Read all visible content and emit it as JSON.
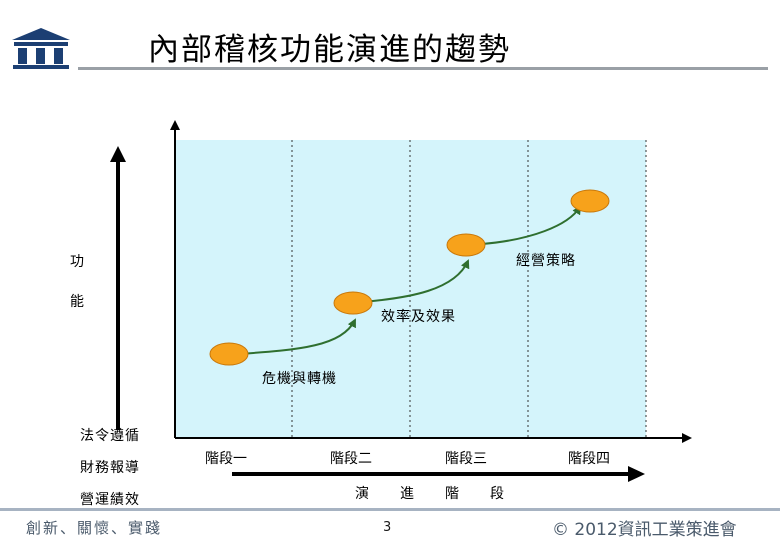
{
  "title": "內部稽核功能演進的趨勢",
  "y_axis_label": [
    "功",
    "能"
  ],
  "functions": [
    "法令遵循",
    "財務報導",
    "營運績效"
  ],
  "stages": [
    "階段一",
    "階段二",
    "階段三",
    "階段四"
  ],
  "x_axis_label": [
    "演",
    "進",
    "階",
    "段"
  ],
  "transitions": [
    "危機與轉機",
    "效率及效果",
    "經營策略"
  ],
  "colors": {
    "panel": "#d4f4fb",
    "node": "#f7a21b",
    "node_border": "#c9780a",
    "arrow": "#2f6f2f"
  },
  "footer": {
    "left": "創新、關懷、實踐",
    "page": "3",
    "right": "© 2012資訊工業策進會"
  }
}
